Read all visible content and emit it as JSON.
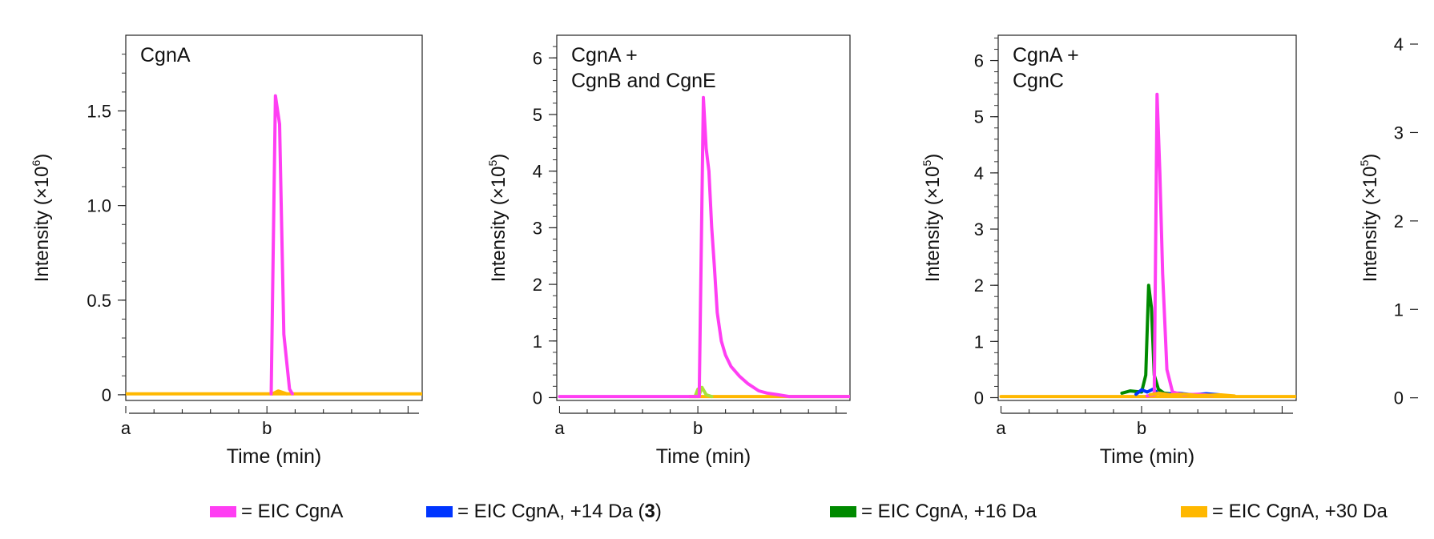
{
  "colors": {
    "cgnA": "#ff3ef3",
    "plus14": "#0035ff",
    "plus16": "#008a00",
    "plus30": "#ffb800",
    "plus16_light": "#a8e23a"
  },
  "legend": [
    {
      "label": "= EIC CgnA",
      "color": "#ff3ef3"
    },
    {
      "label": "= EIC CgnA, +14 Da (",
      "bold": "3",
      "suffix": ")",
      "color": "#0035ff"
    },
    {
      "label": "= EIC CgnA, +16 Da",
      "color": "#008a00"
    },
    {
      "label": "= EIC CgnA, +30 Da",
      "color": "#ffb800"
    }
  ],
  "chart_data": [
    {
      "type": "line",
      "title": "CgnA",
      "xlabel": "Time (min)",
      "ylabel": "Intensity (×10",
      "ylabel_exp": "6",
      "ylabel_close": ")",
      "x_ticks": [
        "a",
        "b"
      ],
      "x_tick_positions": [
        0,
        5
      ],
      "xlim": [
        0,
        10.5
      ],
      "ylim": [
        -0.03,
        1.9
      ],
      "y_ticks": [
        0,
        0.5,
        1.0,
        1.5
      ],
      "y_tick_labels": [
        "0",
        "0.5",
        "1.0",
        "1.5"
      ],
      "series": [
        {
          "key": "plus30",
          "x": [
            0,
            10.5
          ],
          "y": [
            0.005,
            0.005
          ]
        },
        {
          "key": "plus30",
          "x": [
            5.2,
            5.4,
            5.7
          ],
          "y": [
            0.005,
            0.02,
            0.005
          ]
        },
        {
          "key": "cgnA",
          "x": [
            5.15,
            5.3,
            5.45,
            5.6,
            5.8,
            5.9
          ],
          "y": [
            0.005,
            1.58,
            1.43,
            0.32,
            0.03,
            0.005
          ]
        }
      ]
    },
    {
      "type": "line",
      "title": [
        "CgnA +",
        "CgnB and CgnE"
      ],
      "xlabel": "Time (min)",
      "ylabel": "Intensity (×10",
      "ylabel_exp": "5",
      "ylabel_close": ")",
      "x_ticks": [
        "a",
        "b"
      ],
      "x_tick_positions": [
        0,
        5
      ],
      "xlim": [
        -0.1,
        10.5
      ],
      "ylim": [
        -0.05,
        6.4
      ],
      "y_ticks": [
        0,
        1,
        2,
        3,
        4,
        5,
        6
      ],
      "y_tick_labels": [
        "0",
        "1",
        "2",
        "3",
        "4",
        "5",
        "6"
      ],
      "series": [
        {
          "key": "plus30",
          "x": [
            4.7,
            10.5
          ],
          "y": [
            0.02,
            0.02
          ]
        },
        {
          "key": "plus16_light",
          "x": [
            4.9,
            5.0,
            5.05,
            5.15,
            5.3,
            5.5
          ],
          "y": [
            0.02,
            0.15,
            0.05,
            0.18,
            0.05,
            0.02
          ]
        },
        {
          "key": "cgnA",
          "x": [
            0,
            5.05,
            5.2,
            5.3,
            5.4,
            5.5,
            5.6,
            5.7,
            5.85,
            6.0,
            6.2,
            6.5,
            6.8,
            7.2,
            7.5,
            7.9,
            8.3,
            10.5
          ],
          "y": [
            0.02,
            0.02,
            5.3,
            4.4,
            4.0,
            3.0,
            2.3,
            1.5,
            1.0,
            0.75,
            0.55,
            0.38,
            0.25,
            0.12,
            0.08,
            0.05,
            0.02,
            0.02
          ]
        }
      ]
    },
    {
      "type": "line",
      "title": [
        "CgnA +",
        "CgnC"
      ],
      "xlabel": "Time (min)",
      "ylabel": "Intensity (×10",
      "ylabel_exp": "5",
      "ylabel_close": ")",
      "x_ticks": [
        "a",
        "b"
      ],
      "x_tick_positions": [
        0,
        5
      ],
      "xlim": [
        -0.1,
        10.5
      ],
      "ylim": [
        -0.05,
        6.45
      ],
      "y_ticks": [
        0,
        1,
        2,
        3,
        4,
        5,
        6
      ],
      "y_tick_labels": [
        "0",
        "1",
        "2",
        "3",
        "4",
        "5",
        "6"
      ],
      "series": [
        {
          "key": "plus30",
          "x": [
            0,
            10.5
          ],
          "y": [
            0.02,
            0.02
          ]
        },
        {
          "key": "plus16",
          "x": [
            4.3,
            4.6,
            5.0,
            5.15,
            5.25,
            5.35,
            5.45,
            5.6,
            5.8,
            6.2,
            7.0
          ],
          "y": [
            0.08,
            0.12,
            0.1,
            0.4,
            2.0,
            1.6,
            0.4,
            0.15,
            0.08,
            0.06,
            0.05
          ]
        },
        {
          "key": "plus14",
          "x": [
            4.8,
            5.0,
            5.2,
            5.4,
            5.6,
            5.9,
            6.3,
            6.8,
            7.3,
            7.8
          ],
          "y": [
            0.06,
            0.14,
            0.1,
            0.15,
            0.08,
            0.06,
            0.08,
            0.05,
            0.07,
            0.05
          ]
        },
        {
          "key": "cgnA",
          "x": [
            5.2,
            5.45,
            5.55,
            5.65,
            5.75,
            5.9,
            6.1,
            6.5,
            7.0,
            7.5
          ],
          "y": [
            0.03,
            0.05,
            5.4,
            4.0,
            2.2,
            0.5,
            0.1,
            0.05,
            0.06,
            0.04
          ]
        },
        {
          "key": "plus30",
          "x": [
            5.3,
            5.6,
            6.0,
            6.5,
            7.0,
            7.8,
            8.3
          ],
          "y": [
            0.05,
            0.08,
            0.05,
            0.06,
            0.04,
            0.05,
            0.03
          ]
        }
      ]
    },
    {
      "type": "line",
      "title": "",
      "xlabel": "",
      "ylabel": "Intensity (×10",
      "ylabel_exp": "5",
      "ylabel_close": ")",
      "x_ticks": [],
      "x_tick_positions": [],
      "xlim": [
        0,
        10
      ],
      "ylim": [
        -0.03,
        4.1
      ],
      "y_ticks": [
        0,
        1,
        2,
        3,
        4
      ],
      "y_tick_labels": [
        "0",
        "1",
        "2",
        "3",
        "4"
      ],
      "series": []
    }
  ]
}
